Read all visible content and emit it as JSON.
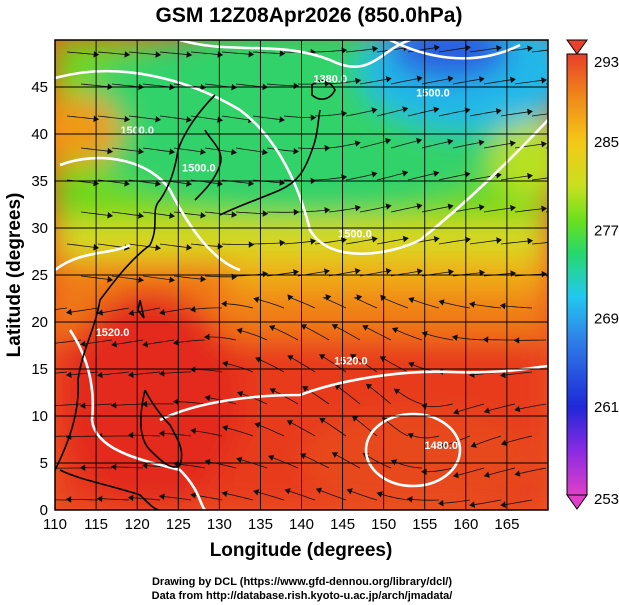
{
  "title": "GSM 12Z08Apr2026 (850.0hPa)",
  "xlabel": "Longitude (degrees)",
  "ylabel": "Latitude  (degrees)",
  "credit_line1": "Drawing by DCL (https://www.gfd-dennou.org/library/dcl/)",
  "credit_line2": "Data from http://database.rish.kyoto-u.ac.jp/arch/jmadata/",
  "map": {
    "lon_range": [
      110,
      170
    ],
    "lat_range": [
      0,
      50
    ],
    "lon_ticks": [
      "110",
      "115",
      "120",
      "125",
      "130",
      "135",
      "140",
      "145",
      "150",
      "155",
      "160",
      "165"
    ],
    "lat_ticks": [
      "0",
      "5",
      "10",
      "15",
      "20",
      "25",
      "30",
      "35",
      "40",
      "45"
    ],
    "grid": "on",
    "field": "temperature",
    "overlays": [
      "streamlines",
      "geopotential-height-contours",
      "coastlines"
    ]
  },
  "colorbar": {
    "range": [
      253,
      293
    ],
    "ticks": [
      "293",
      "285",
      "277",
      "269",
      "261",
      "253"
    ],
    "colors": [
      "#e040c8",
      "#8a2be2",
      "#1f28d8",
      "#2f7fe8",
      "#22c8f0",
      "#28d86a",
      "#66e01e",
      "#c8e020",
      "#f4c818",
      "#f08a1a",
      "#e8402a"
    ]
  },
  "contours": [
    {
      "label": "1380.0",
      "lon": 143.5,
      "lat": 45.5
    },
    {
      "label": "1500.0",
      "lon": 156.0,
      "lat": 44.0
    },
    {
      "label": "1500.0",
      "lon": 120.0,
      "lat": 40.0
    },
    {
      "label": "1500.0",
      "lon": 127.5,
      "lat": 36.0
    },
    {
      "label": "1500.0",
      "lon": 146.5,
      "lat": 29.0
    },
    {
      "label": "1520.0",
      "lon": 117.0,
      "lat": 18.5
    },
    {
      "label": "1520.0",
      "lon": 146.0,
      "lat": 15.5
    },
    {
      "label": "1480.0",
      "lon": 157.0,
      "lat": 6.5
    }
  ]
}
